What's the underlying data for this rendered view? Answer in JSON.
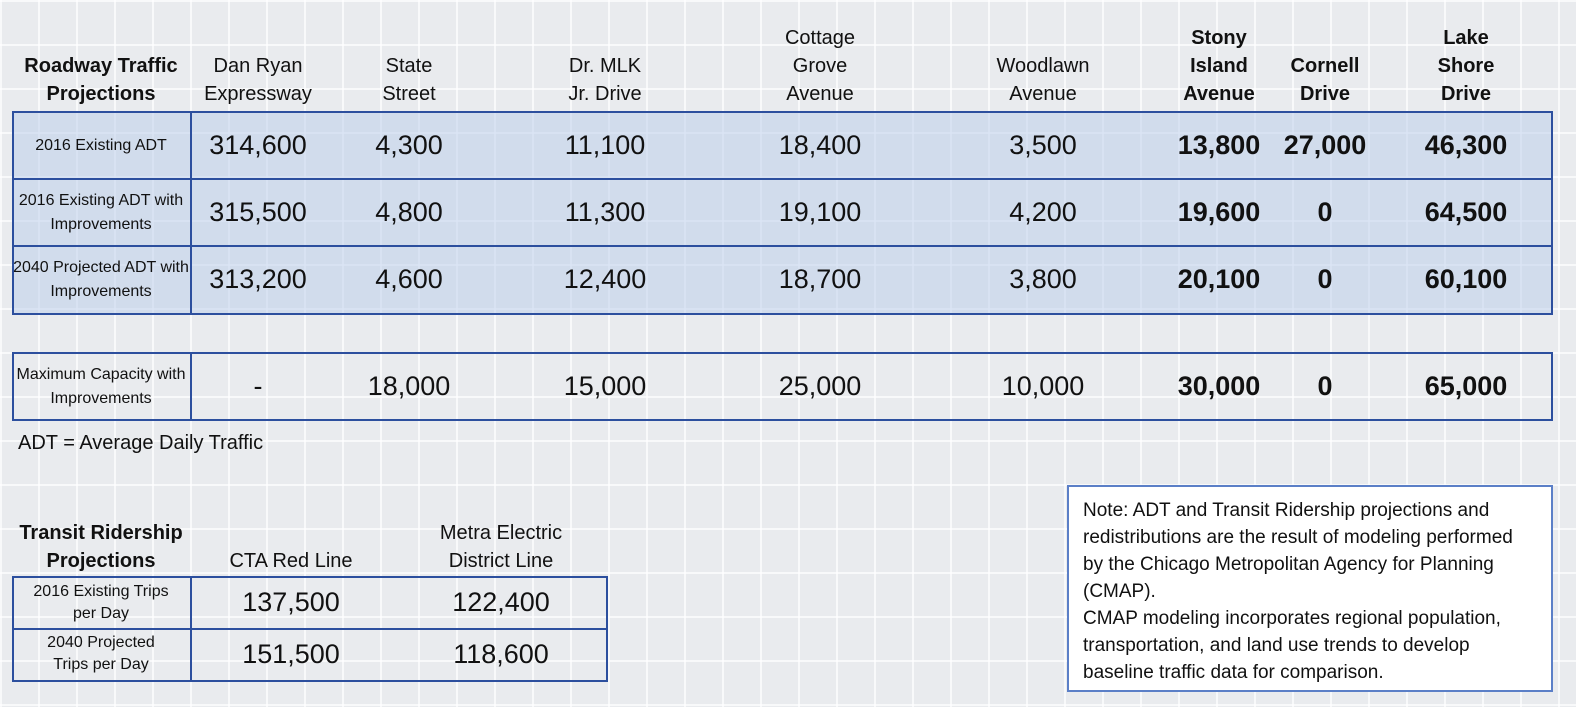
{
  "roadway": {
    "title": "Roadway Traffic Projections",
    "columns": [
      "Dan Ryan Expressway",
      "State Street",
      "Dr. MLK Jr. Drive",
      "Cottage Grove Avenue",
      "Woodlawn Avenue",
      "Stony Island Avenue",
      "Cornell Drive",
      "Lake Shore Drive"
    ],
    "rows": [
      {
        "label": "2016 Existing ADT",
        "values": [
          "314,600",
          "4,300",
          "11,100",
          "18,400",
          "3,500",
          "13,800",
          "27,000",
          "46,300"
        ]
      },
      {
        "label": "2016 Existing ADT with Improvements",
        "values": [
          "315,500",
          "4,800",
          "11,300",
          "19,100",
          "4,200",
          "19,600",
          "0",
          "64,500"
        ]
      },
      {
        "label": "2040 Projected ADT with Improvements",
        "values": [
          "313,200",
          "4,600",
          "12,400",
          "18,700",
          "3,800",
          "20,100",
          "0",
          "60,100"
        ]
      }
    ],
    "capacity": {
      "label": "Maximum Capacity with Improvements",
      "values": [
        "-",
        "18,000",
        "15,000",
        "25,000",
        "10,000",
        "30,000",
        "0",
        "65,000"
      ]
    },
    "footnote": "ADT = Average Daily Traffic"
  },
  "transit": {
    "title": "Transit Ridership Projections",
    "columns": [
      "CTA Red Line",
      "Metra Electric District Line"
    ],
    "rows": [
      {
        "label": "2016 Existing Trips per Day",
        "values": [
          "137,500",
          "122,400"
        ]
      },
      {
        "label": "2040 Projected Trips per Day",
        "values": [
          "151,500",
          "118,600"
        ]
      }
    ]
  },
  "note": {
    "paragraphs": [
      "Note: ADT and Transit Ridership projections and redistributions are the result of modeling performed by the Chicago Metropolitan Agency for Planning (CMAP).",
      "CMAP modeling incorporates regional population, transportation, and land use trends to develop baseline traffic data for comparison."
    ]
  }
}
